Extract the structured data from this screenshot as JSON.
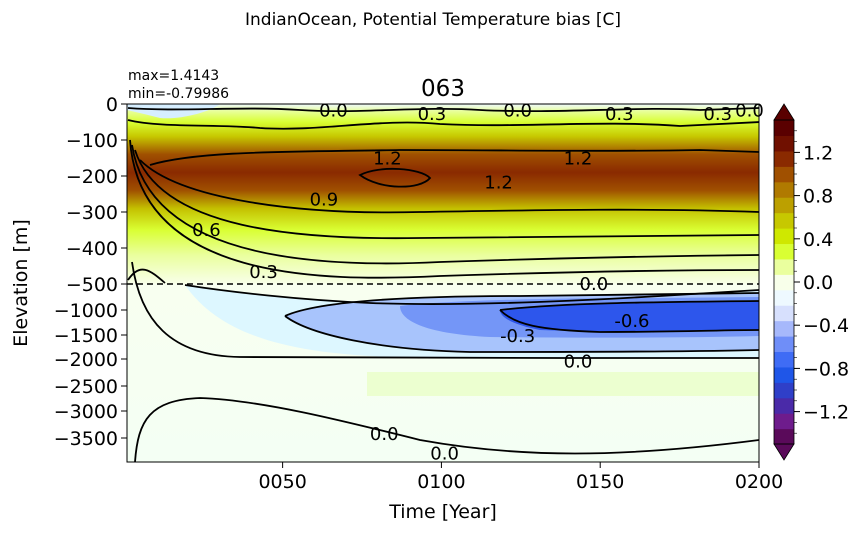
{
  "figure": {
    "suptitle": "IndianOcean, Potential Temperature bias [C]",
    "title": "063",
    "stats": {
      "max": "max=1.4143",
      "min": "min=-0.79986"
    }
  },
  "chart_data": {
    "type": "heatmap",
    "title": "063",
    "xlabel": "Time [Year]",
    "ylabel": "Elevation [m]",
    "xlim": [
      1,
      200
    ],
    "x_ticks": [
      50,
      100,
      150,
      200
    ],
    "x_tick_labels": [
      "0050",
      "0100",
      "0150",
      "0200"
    ],
    "y_axis_note": "two-part axis: linear 0 to -500 m on top, compressed deep ocean -500 to -4000 m below",
    "upper_y_ticks": [
      0,
      -100,
      -200,
      -300,
      -400,
      -500
    ],
    "upper_y_tick_labels": [
      "0",
      "−100",
      "−200",
      "−300",
      "−400",
      "−500"
    ],
    "lower_y_ticks": [
      -1000,
      -1500,
      -2000,
      -2500,
      -3000,
      -3500
    ],
    "lower_y_tick_labels": [
      "−1000",
      "−1500",
      "−2000",
      "−2500",
      "−3000",
      "−3500"
    ],
    "ylim": [
      -4000,
      0
    ],
    "split_depth": -500,
    "value_range": {
      "max": 1.4143,
      "min": -0.79986
    },
    "contour_levels": [
      -0.6,
      -0.3,
      0.0,
      0.3,
      0.6,
      0.9,
      1.2
    ],
    "contour_labels": [
      {
        "text": "0.0",
        "x": 66,
        "y": -18
      },
      {
        "text": "0.3",
        "x": 97,
        "y": -28
      },
      {
        "text": "0.0",
        "x": 124,
        "y": -18
      },
      {
        "text": "0.3",
        "x": 156,
        "y": -28
      },
      {
        "text": "0.3",
        "x": 187,
        "y": -28
      },
      {
        "text": "0.0",
        "x": 197,
        "y": -18
      },
      {
        "text": "1.2",
        "x": 83,
        "y": -152
      },
      {
        "text": "1.2",
        "x": 143,
        "y": -152
      },
      {
        "text": "1.2",
        "x": 118,
        "y": -218
      },
      {
        "text": "0.9",
        "x": 63,
        "y": -265
      },
      {
        "text": "0.6",
        "x": 26,
        "y": -350
      },
      {
        "text": "0.3",
        "x": 44,
        "y": -467
      },
      {
        "text": "0.0",
        "x": 148,
        "y": -500
      },
      {
        "text": "-0.6",
        "x": 160,
        "y": -1220
      },
      {
        "text": "-0.3",
        "x": 124,
        "y": -1520
      },
      {
        "text": "0.0",
        "x": 143,
        "y": -2050
      },
      {
        "text": "0.0",
        "x": 82,
        "y": -3430
      },
      {
        "text": "0.0",
        "x": 101,
        "y": -3820
      }
    ],
    "colorbar": {
      "min": -1.5,
      "max": 1.5,
      "ticks": [
        1.2,
        0.8,
        0.4,
        0.0,
        -0.4,
        -0.8,
        -1.2
      ],
      "tick_labels": [
        "1.2",
        "0.8",
        "0.4",
        "0.0",
        "−0.4",
        "−0.8",
        "−1.2"
      ],
      "extend": "both",
      "colors": [
        "#5a0a5a",
        "#6e1c8c",
        "#4a2aa8",
        "#2f3fc8",
        "#1f56e8",
        "#3f6cf5",
        "#6f8ef8",
        "#a6b8fb",
        "#d7e0fd",
        "#eef9ff",
        "#f8ffea",
        "#eaff9e",
        "#d9ff33",
        "#cfe800",
        "#c7c800",
        "#bca000",
        "#b07a00",
        "#a05000",
        "#8a2a00",
        "#701000",
        "#5a0000"
      ]
    }
  }
}
